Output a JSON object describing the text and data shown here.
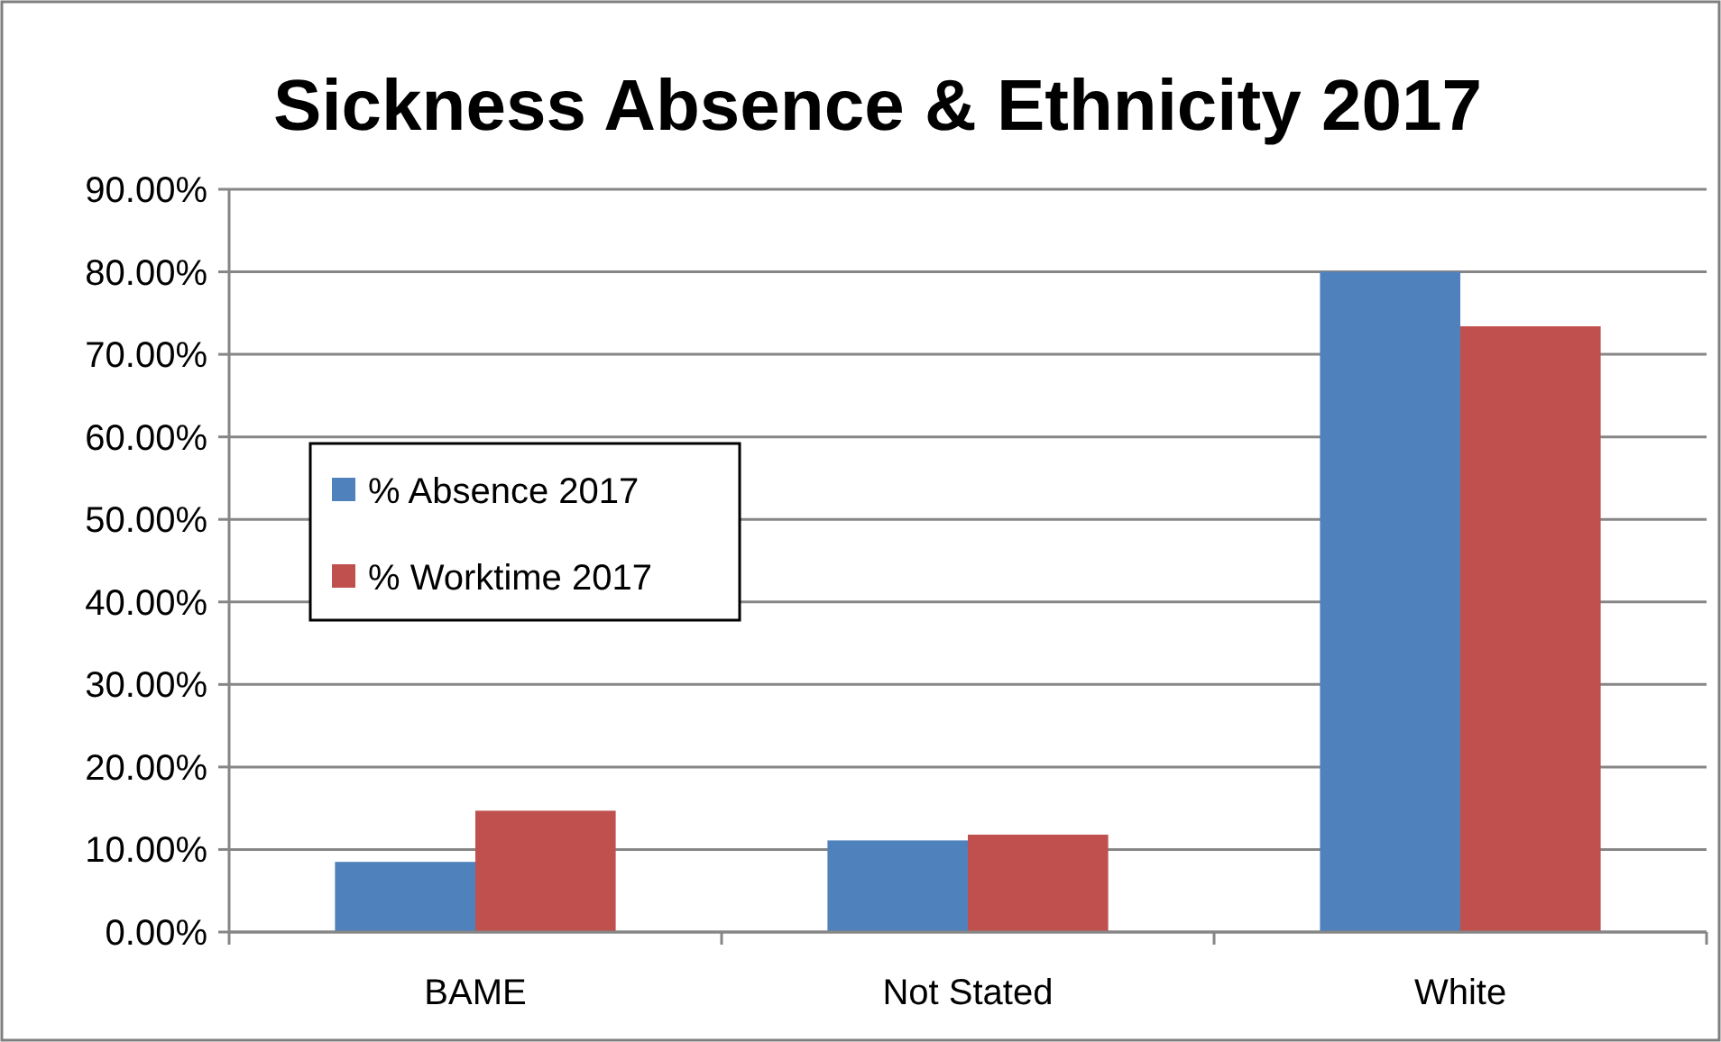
{
  "chart_data": {
    "type": "bar",
    "title": "Sickness Absence & Ethnicity 2017",
    "categories": [
      "BAME",
      "Not Stated",
      "White"
    ],
    "series": [
      {
        "name": "% Absence 2017",
        "color": "#4f81bd",
        "values": [
          8.5,
          11.1,
          80
        ]
      },
      {
        "name": "% Worktime 2017",
        "color": "#c0504d",
        "values": [
          14.7,
          11.8,
          73.4
        ]
      }
    ],
    "ylim": [
      0,
      90
    ],
    "yticks": [
      {
        "value": 0,
        "label": "0.00%"
      },
      {
        "value": 10,
        "label": "10.00%"
      },
      {
        "value": 20,
        "label": "20.00%"
      },
      {
        "value": 30,
        "label": "30.00%"
      },
      {
        "value": 40,
        "label": "40.00%"
      },
      {
        "value": 50,
        "label": "50.00%"
      },
      {
        "value": 60,
        "label": "60.00%"
      },
      {
        "value": 70,
        "label": "70.00%"
      },
      {
        "value": 80,
        "label": "80.00%"
      },
      {
        "value": 90,
        "label": "90.00%"
      }
    ],
    "grid": "y",
    "legend": "left"
  }
}
